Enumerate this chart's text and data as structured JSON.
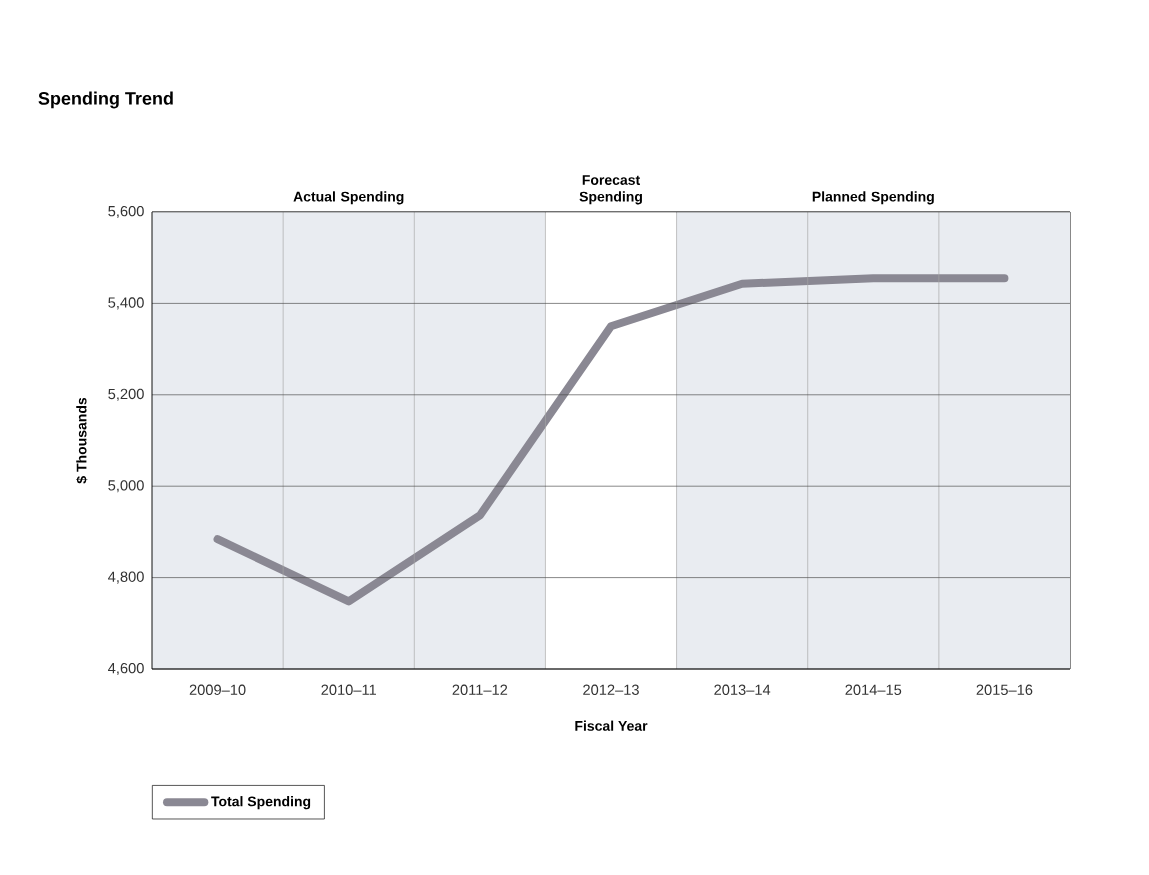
{
  "chart_data": {
    "type": "line",
    "title": "Spending Trend",
    "xlabel": "Fiscal Year",
    "ylabel": "$ Thousands",
    "categories": [
      "2009–10",
      "2010–11",
      "2011–12",
      "2012–13",
      "2013–14",
      "2014–15",
      "2015–16"
    ],
    "series": [
      {
        "name": "Total Spending",
        "color": "#8a8893",
        "values": [
          4884,
          4748,
          4936,
          5350,
          5443,
          5455,
          5455
        ]
      }
    ],
    "ylim": [
      4600,
      5600
    ],
    "yticks": [
      {
        "value": 4600,
        "label": "4,600"
      },
      {
        "value": 4800,
        "label": "4,800"
      },
      {
        "value": 5000,
        "label": "5,000"
      },
      {
        "value": 5200,
        "label": "5,200"
      },
      {
        "value": 5400,
        "label": "5,400"
      },
      {
        "value": 5600,
        "label": "5,600"
      }
    ],
    "bands": [
      {
        "axis": "x",
        "from": "2009–10",
        "to": "2011–12",
        "label": "Actual Spending",
        "color": "#e9ecf1"
      },
      {
        "axis": "x",
        "from": "2012–13",
        "to": "2012–13",
        "label": "Forecast Spending",
        "color": "#ffffff"
      },
      {
        "axis": "x",
        "from": "2013–14",
        "to": "2015–16",
        "label": "Planned Spending",
        "color": "#e9ecf1"
      }
    ],
    "grid": true,
    "legend": "bottom left",
    "marker": "none",
    "line_style": "solid"
  }
}
